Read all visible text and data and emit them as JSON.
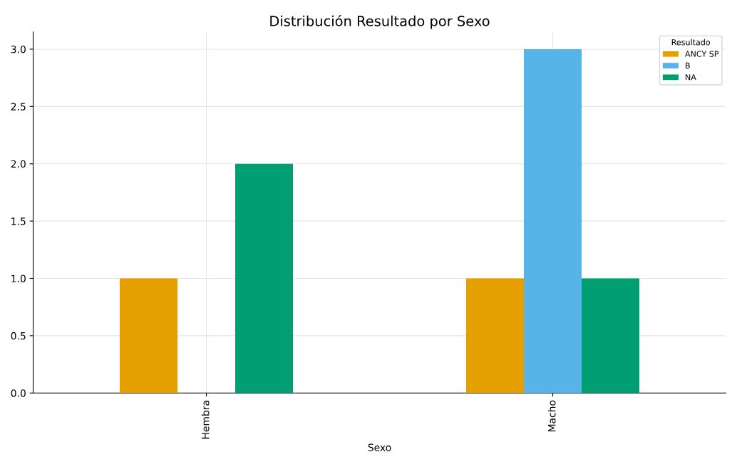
{
  "chart_data": {
    "type": "bar",
    "title": "Distribución Resultado por Sexo",
    "xlabel": "Sexo",
    "legend_title": "Resultado",
    "categories": [
      "Hembra",
      "Macho"
    ],
    "series": [
      {
        "name": "ANCY SP",
        "color": "#e69f00",
        "values": [
          1,
          1
        ]
      },
      {
        "name": "B",
        "color": "#56b4e9",
        "values": [
          0,
          3
        ]
      },
      {
        "name": "NA",
        "color": "#009e73",
        "values": [
          2,
          1
        ]
      }
    ],
    "ylim": [
      0,
      3.15
    ],
    "yticks": [
      {
        "value": 0,
        "label": "0.0"
      },
      {
        "value": 0.5,
        "label": "0.5"
      },
      {
        "value": 1,
        "label": "1.0"
      },
      {
        "value": 1.5,
        "label": "1.5"
      },
      {
        "value": 2,
        "label": "2.0"
      },
      {
        "value": 2.5,
        "label": "2.5"
      },
      {
        "value": 3,
        "label": "3.0"
      }
    ],
    "grid": true,
    "legend": "top right"
  }
}
